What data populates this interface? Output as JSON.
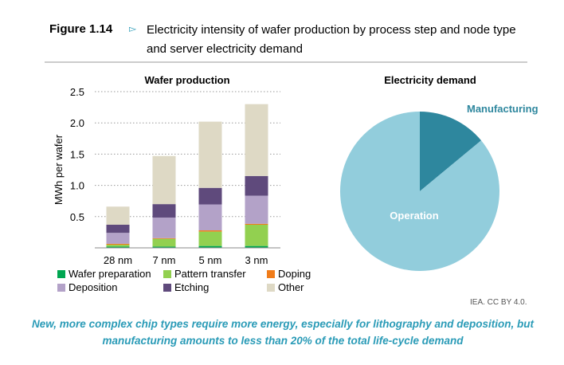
{
  "header": {
    "figure_label": "Figure 1.14",
    "title": "Electricity intensity of wafer production by process step and node type and server electricity demand"
  },
  "credit": "IEA. CC BY 4.0.",
  "caption": "New, more complex chip types require more energy, especially for lithography and deposition, but manufacturing amounts to less than 20% of the total life-cycle demand",
  "chart_data": [
    {
      "type": "bar",
      "stacked": true,
      "title": "Wafer production",
      "xlabel": "",
      "ylabel": "MWh per wafer",
      "ylim": [
        0,
        2.5
      ],
      "yticks": [
        "0.5",
        "1.0",
        "1.5",
        "2.0",
        "2.5"
      ],
      "ytick_values": [
        0.5,
        1.0,
        1.5,
        2.0,
        2.5
      ],
      "grid": true,
      "legend_position": "bottom",
      "categories": [
        "28 nm",
        "7 nm",
        "5 nm",
        "3 nm"
      ],
      "series": [
        {
          "name": "Wafer preparation",
          "color": "#00a651",
          "values": [
            0.02,
            0.02,
            0.03,
            0.03
          ]
        },
        {
          "name": "Pattern transfer",
          "color": "#92d050",
          "values": [
            0.03,
            0.125,
            0.23,
            0.34
          ]
        },
        {
          "name": "Doping",
          "color": "#f07c1a",
          "values": [
            0.015,
            0.01,
            0.02,
            0.015
          ]
        },
        {
          "name": "Deposition",
          "color": "#b3a2c8",
          "values": [
            0.175,
            0.33,
            0.415,
            0.45
          ]
        },
        {
          "name": "Etching",
          "color": "#5f4a7c",
          "values": [
            0.13,
            0.215,
            0.265,
            0.315
          ]
        },
        {
          "name": "Other",
          "color": "#ded9c5",
          "values": [
            0.29,
            0.77,
            1.06,
            1.15
          ]
        }
      ]
    },
    {
      "type": "pie",
      "title": "Electricity demand",
      "slices": [
        {
          "name": "Manufacturing",
          "value": 14,
          "color": "#2e879e",
          "label_color": "#2e879e"
        },
        {
          "name": "Operation",
          "value": 86,
          "color": "#92cddc",
          "label_color": "#ffffff"
        }
      ]
    }
  ]
}
